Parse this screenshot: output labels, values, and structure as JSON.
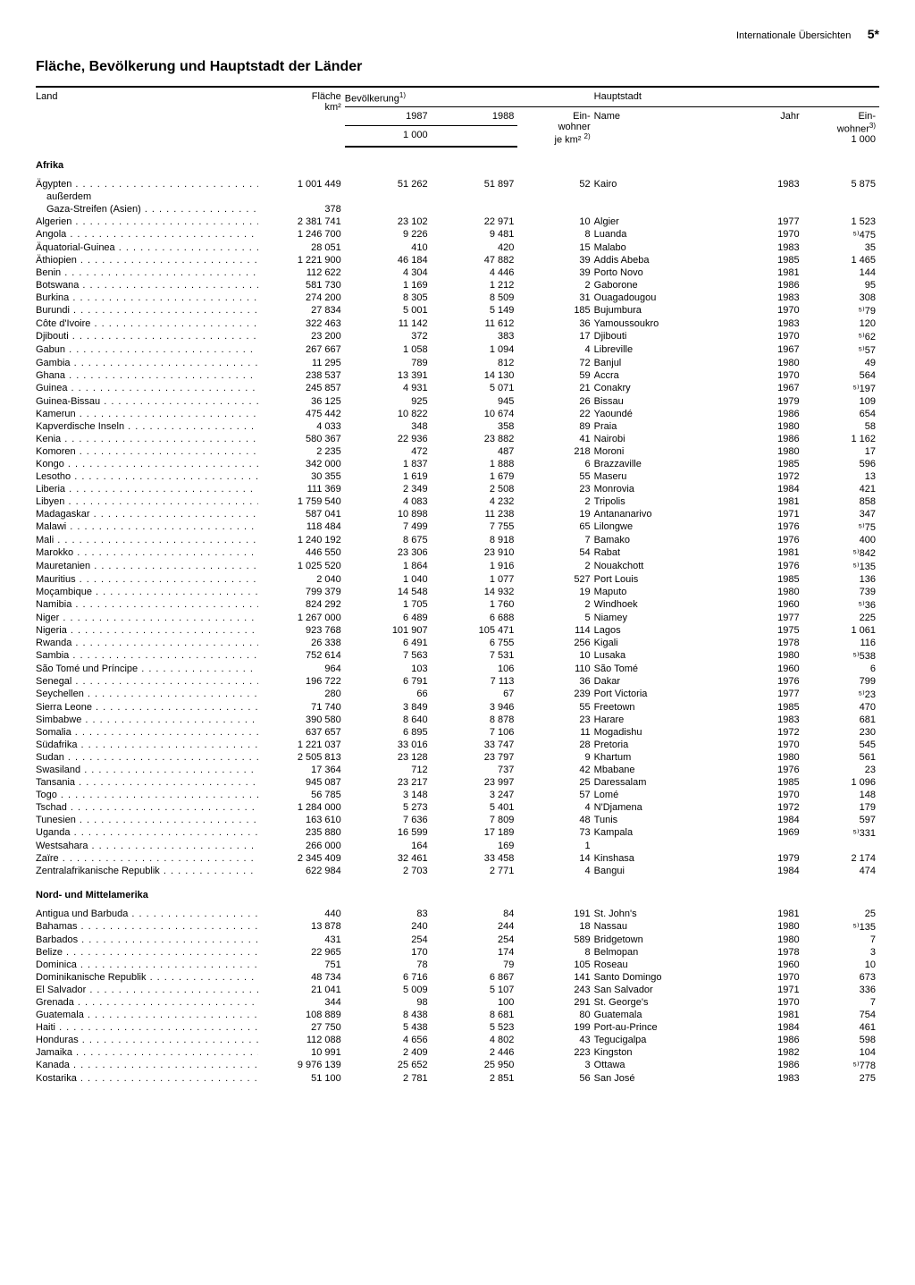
{
  "header": {
    "section": "Internationale Übersichten",
    "page": "5*"
  },
  "title": "Fläche, Bevölkerung und Hauptstadt der Länder",
  "columns": {
    "land": "Land",
    "flaeche": "Fläche",
    "flaeche_unit": "km²",
    "bevoelkerung": "Bevölkerung",
    "bev_note": "1)",
    "y1987": "1987",
    "y1988": "1988",
    "thousand": "1 000",
    "einwohner": "Ein-",
    "einwohner2": "wohner",
    "einwohner_unit": "je km²",
    "einwohner_note": "2)",
    "hauptstadt": "Hauptstadt",
    "name": "Name",
    "jahr": "Jahr",
    "cap_einw": "Ein-",
    "cap_einw2": "wohner",
    "cap_einw_note": "3)",
    "cap_thousand": "1 000"
  },
  "regions": [
    {
      "name": "Afrika",
      "rows": [
        {
          "country": "Ägypten",
          "area": "1 001 449",
          "p87": "51 262",
          "p88": "51 897",
          "dens": "52",
          "cap": "Kairo",
          "year": "1983",
          "capinh": "5 875"
        },
        {
          "country": "außerdem",
          "indent": true,
          "no_dots": true
        },
        {
          "country": "Gaza-Streifen (Asien)",
          "indent": true,
          "area": "378"
        },
        {
          "country": "Algerien",
          "area": "2 381 741",
          "p87": "23 102",
          "p88": "22 971",
          "dens": "10",
          "cap": "Algier",
          "year": "1977",
          "capinh": "1 523"
        },
        {
          "country": "Angola",
          "area": "1 246 700",
          "p87": "9 226",
          "p88": "9 481",
          "dens": "8",
          "cap": "Luanda",
          "year": "1970",
          "capinh": "⁵⁾475"
        },
        {
          "country": "Äquatorial-Guinea",
          "area": "28 051",
          "p87": "410",
          "p88": "420",
          "dens": "15",
          "cap": "Malabo",
          "year": "1983",
          "capinh": "35"
        },
        {
          "country": "Äthiopien",
          "area": "1 221 900",
          "p87": "46 184",
          "p88": "47 882",
          "dens": "39",
          "cap": "Addis Abeba",
          "year": "1985",
          "capinh": "1 465"
        },
        {
          "country": "Benin",
          "area": "112 622",
          "p87": "4 304",
          "p88": "4 446",
          "dens": "39",
          "cap": "Porto Novo",
          "year": "1981",
          "capinh": "144"
        },
        {
          "country": "Botswana",
          "area": "581 730",
          "p87": "1 169",
          "p88": "1 212",
          "dens": "2",
          "cap": "Gaborone",
          "year": "1986",
          "capinh": "95"
        },
        {
          "country": "Burkina",
          "area": "274 200",
          "p87": "8 305",
          "p88": "8 509",
          "dens": "31",
          "cap": "Ouagadougou",
          "year": "1983",
          "capinh": "308"
        },
        {
          "country": "Burundi",
          "area": "27 834",
          "p87": "5 001",
          "p88": "5 149",
          "dens": "185",
          "cap": "Bujumbura",
          "year": "1970",
          "capinh": "⁵⁾79"
        },
        {
          "country": "Côte d'Ivoire",
          "area": "322 463",
          "p87": "11 142",
          "p88": "11 612",
          "dens": "36",
          "cap": "Yamoussoukro",
          "year": "1983",
          "capinh": "120"
        },
        {
          "country": "Djibouti",
          "area": "23 200",
          "p87": "372",
          "p88": "383",
          "dens": "17",
          "cap": "Djibouti",
          "year": "1970",
          "capinh": "⁵⁾62"
        },
        {
          "country": "Gabun",
          "area": "267 667",
          "p87": "1 058",
          "p88": "1 094",
          "dens": "4",
          "cap": "Libreville",
          "year": "1967",
          "capinh": "⁵⁾57"
        },
        {
          "country": "Gambia",
          "area": "11 295",
          "p87": "789",
          "p88": "812",
          "dens": "72",
          "cap": "Banjul",
          "year": "1980",
          "capinh": "49"
        },
        {
          "country": "Ghana",
          "area": "238 537",
          "p87": "13 391",
          "p88": "14 130",
          "dens": "59",
          "cap": "Accra",
          "year": "1970",
          "capinh": "564"
        },
        {
          "country": "Guinea",
          "area": "245 857",
          "p87": "4 931",
          "p88": "5 071",
          "dens": "21",
          "cap": "Conakry",
          "year": "1967",
          "capinh": "⁵⁾197"
        },
        {
          "country": "Guinea-Bissau",
          "area": "36 125",
          "p87": "925",
          "p88": "945",
          "dens": "26",
          "cap": "Bissau",
          "year": "1979",
          "capinh": "109"
        },
        {
          "country": "Kamerun",
          "area": "475 442",
          "p87": "10 822",
          "p88": "10 674",
          "dens": "22",
          "cap": "Yaoundé",
          "year": "1986",
          "capinh": "654"
        },
        {
          "country": "Kapverdische Inseln",
          "area": "4 033",
          "p87": "348",
          "p88": "358",
          "dens": "89",
          "cap": "Praia",
          "year": "1980",
          "capinh": "58"
        },
        {
          "country": "Kenia",
          "area": "580 367",
          "p87": "22 936",
          "p88": "23 882",
          "dens": "41",
          "cap": "Nairobi",
          "year": "1986",
          "capinh": "1 162"
        },
        {
          "country": "Komoren",
          "area": "2 235",
          "p87": "472",
          "p88": "487",
          "dens": "218",
          "cap": "Moroni",
          "year": "1980",
          "capinh": "17"
        },
        {
          "country": "Kongo",
          "area": "342 000",
          "p87": "1 837",
          "p88": "1 888",
          "dens": "6",
          "cap": "Brazzaville",
          "year": "1985",
          "capinh": "596"
        },
        {
          "country": "Lesotho",
          "area": "30 355",
          "p87": "1 619",
          "p88": "1 679",
          "dens": "55",
          "cap": "Maseru",
          "year": "1972",
          "capinh": "13"
        },
        {
          "country": "Liberia",
          "area": "111 369",
          "p87": "2 349",
          "p88": "2 508",
          "dens": "23",
          "cap": "Monrovia",
          "year": "1984",
          "capinh": "421"
        },
        {
          "country": "Libyen",
          "area": "1 759 540",
          "p87": "4 083",
          "p88": "4 232",
          "dens": "2",
          "cap": "Tripolis",
          "year": "1981",
          "capinh": "858"
        },
        {
          "country": "Madagaskar",
          "area": "587 041",
          "p87": "10 898",
          "p88": "11 238",
          "dens": "19",
          "cap": "Antananarivo",
          "year": "1971",
          "capinh": "347"
        },
        {
          "country": "Malawi",
          "area": "118 484",
          "p87": "7 499",
          "p88": "7 755",
          "dens": "65",
          "cap": "Lilongwe",
          "year": "1976",
          "capinh": "⁵⁾75"
        },
        {
          "country": "Mali",
          "area": "1 240 192",
          "p87": "8 675",
          "p88": "8 918",
          "dens": "7",
          "cap": "Bamako",
          "year": "1976",
          "capinh": "400"
        },
        {
          "country": "Marokko",
          "area": "446 550",
          "p87": "23 306",
          "p88": "23 910",
          "dens": "54",
          "cap": "Rabat",
          "year": "1981",
          "capinh": "⁵⁾842"
        },
        {
          "country": "Mauretanien",
          "area": "1 025 520",
          "p87": "1 864",
          "p88": "1 916",
          "dens": "2",
          "cap": "Nouakchott",
          "year": "1976",
          "capinh": "⁵⁾135"
        },
        {
          "country": "Mauritius",
          "area": "2 040",
          "p87": "1 040",
          "p88": "1 077",
          "dens": "527",
          "cap": "Port Louis",
          "year": "1985",
          "capinh": "136"
        },
        {
          "country": "Moçambique",
          "area": "799 379",
          "p87": "14 548",
          "p88": "14 932",
          "dens": "19",
          "cap": "Maputo",
          "year": "1980",
          "capinh": "739"
        },
        {
          "country": "Namibia",
          "area": "824 292",
          "p87": "1 705",
          "p88": "1 760",
          "dens": "2",
          "cap": "Windhoek",
          "year": "1960",
          "capinh": "⁵⁾36"
        },
        {
          "country": "Niger",
          "area": "1 267 000",
          "p87": "6 489",
          "p88": "6 688",
          "dens": "5",
          "cap": "Niamey",
          "year": "1977",
          "capinh": "225"
        },
        {
          "country": "Nigeria",
          "area": "923 768",
          "p87": "101 907",
          "p88": "105 471",
          "dens": "114",
          "cap": "Lagos",
          "year": "1975",
          "capinh": "1 061"
        },
        {
          "country": "Rwanda",
          "area": "26 338",
          "p87": "6 491",
          "p88": "6 755",
          "dens": "256",
          "cap": "Kigali",
          "year": "1978",
          "capinh": "116"
        },
        {
          "country": "Sambia",
          "area": "752 614",
          "p87": "7 563",
          "p88": "7 531",
          "dens": "10",
          "cap": "Lusaka",
          "year": "1980",
          "capinh": "⁵⁾538"
        },
        {
          "country": "São Tomé und Príncipe",
          "area": "964",
          "p87": "103",
          "p88": "106",
          "dens": "110",
          "cap": "São Tomé",
          "year": "1960",
          "capinh": "6"
        },
        {
          "country": "Senegal",
          "area": "196 722",
          "p87": "6 791",
          "p88": "7 113",
          "dens": "36",
          "cap": "Dakar",
          "year": "1976",
          "capinh": "799"
        },
        {
          "country": "Seychellen",
          "area": "280",
          "p87": "66",
          "p88": "67",
          "dens": "239",
          "cap": "Port Victoria",
          "year": "1977",
          "capinh": "⁵⁾23"
        },
        {
          "country": "Sierra Leone",
          "area": "71 740",
          "p87": "3 849",
          "p88": "3 946",
          "dens": "55",
          "cap": "Freetown",
          "year": "1985",
          "capinh": "470"
        },
        {
          "country": "Simbabwe",
          "area": "390 580",
          "p87": "8 640",
          "p88": "8 878",
          "dens": "23",
          "cap": "Harare",
          "year": "1983",
          "capinh": "681"
        },
        {
          "country": "Somalia",
          "area": "637 657",
          "p87": "6 895",
          "p88": "7 106",
          "dens": "11",
          "cap": "Mogadishu",
          "year": "1972",
          "capinh": "230"
        },
        {
          "country": "Südafrika",
          "area": "1 221 037",
          "p87": "33 016",
          "p88": "33 747",
          "dens": "28",
          "cap": "Pretoria",
          "year": "1970",
          "capinh": "545"
        },
        {
          "country": "Sudan",
          "area": "2 505 813",
          "p87": "23 128",
          "p88": "23 797",
          "dens": "9",
          "cap": "Khartum",
          "year": "1980",
          "capinh": "561"
        },
        {
          "country": "Swasiland",
          "area": "17 364",
          "p87": "712",
          "p88": "737",
          "dens": "42",
          "cap": "Mbabane",
          "year": "1976",
          "capinh": "23"
        },
        {
          "country": "Tansania",
          "area": "945 087",
          "p87": "23 217",
          "p88": "23 997",
          "dens": "25",
          "cap": "Daressalam",
          "year": "1985",
          "capinh": "1 096"
        },
        {
          "country": "Togo",
          "area": "56 785",
          "p87": "3 148",
          "p88": "3 247",
          "dens": "57",
          "cap": "Lomé",
          "year": "1970",
          "capinh": "148"
        },
        {
          "country": "Tschad",
          "area": "1 284 000",
          "p87": "5 273",
          "p88": "5 401",
          "dens": "4",
          "cap": "N'Djamena",
          "year": "1972",
          "capinh": "179"
        },
        {
          "country": "Tunesien",
          "area": "163 610",
          "p87": "7 636",
          "p88": "7 809",
          "dens": "48",
          "cap": "Tunis",
          "year": "1984",
          "capinh": "597"
        },
        {
          "country": "Uganda",
          "area": "235 880",
          "p87": "16 599",
          "p88": "17 189",
          "dens": "73",
          "cap": "Kampala",
          "year": "1969",
          "capinh": "⁵⁾331"
        },
        {
          "country": "Westsahara",
          "area": "266 000",
          "p87": "164",
          "p88": "169",
          "dens": "1"
        },
        {
          "country": "Zaïre",
          "area": "2 345 409",
          "p87": "32 461",
          "p88": "33 458",
          "dens": "14",
          "cap": "Kinshasa",
          "year": "1979",
          "capinh": "2 174"
        },
        {
          "country": "Zentralafrikanische Republik",
          "area": "622 984",
          "p87": "2 703",
          "p88": "2 771",
          "dens": "4",
          "cap": "Bangui",
          "year": "1984",
          "capinh": "474"
        }
      ]
    },
    {
      "name": "Nord- und Mittelamerika",
      "rows": [
        {
          "country": "Antigua und Barbuda",
          "area": "440",
          "p87": "83",
          "p88": "84",
          "dens": "191",
          "cap": "St. John's",
          "year": "1981",
          "capinh": "25"
        },
        {
          "country": "Bahamas",
          "area": "13 878",
          "p87": "240",
          "p88": "244",
          "dens": "18",
          "cap": "Nassau",
          "year": "1980",
          "capinh": "⁵⁾135"
        },
        {
          "country": "Barbados",
          "area": "431",
          "p87": "254",
          "p88": "254",
          "dens": "589",
          "cap": "Bridgetown",
          "year": "1980",
          "capinh": "7"
        },
        {
          "country": "Belize",
          "area": "22 965",
          "p87": "170",
          "p88": "174",
          "dens": "8",
          "cap": "Belmopan",
          "year": "1978",
          "capinh": "3"
        },
        {
          "country": "Dominica",
          "area": "751",
          "p87": "78",
          "p88": "79",
          "dens": "105",
          "cap": "Roseau",
          "year": "1960",
          "capinh": "10"
        },
        {
          "country": "Dominikanische Republik",
          "area": "48 734",
          "p87": "6 716",
          "p88": "6 867",
          "dens": "141",
          "cap": "Santo Domingo",
          "year": "1970",
          "capinh": "673"
        },
        {
          "country": "El Salvador",
          "area": "21 041",
          "p87": "5 009",
          "p88": "5 107",
          "dens": "243",
          "cap": "San Salvador",
          "year": "1971",
          "capinh": "336"
        },
        {
          "country": "Grenada",
          "area": "344",
          "p87": "98",
          "p88": "100",
          "dens": "291",
          "cap": "St. George's",
          "year": "1970",
          "capinh": "7"
        },
        {
          "country": "Guatemala",
          "area": "108 889",
          "p87": "8 438",
          "p88": "8 681",
          "dens": "80",
          "cap": "Guatemala",
          "year": "1981",
          "capinh": "754"
        },
        {
          "country": "Haiti",
          "area": "27 750",
          "p87": "5 438",
          "p88": "5 523",
          "dens": "199",
          "cap": "Port-au-Prince",
          "year": "1984",
          "capinh": "461"
        },
        {
          "country": "Honduras",
          "area": "112 088",
          "p87": "4 656",
          "p88": "4 802",
          "dens": "43",
          "cap": "Tegucigalpa",
          "year": "1986",
          "capinh": "598"
        },
        {
          "country": "Jamaika",
          "area": "10 991",
          "p87": "2 409",
          "p88": "2 446",
          "dens": "223",
          "cap": "Kingston",
          "year": "1982",
          "capinh": "104"
        },
        {
          "country": "Kanada",
          "area": "9 976 139",
          "p87": "25 652",
          "p88": "25 950",
          "dens": "3",
          "cap": "Ottawa",
          "year": "1986",
          "capinh": "⁵⁾778"
        },
        {
          "country": "Kostarika",
          "area": "51 100",
          "p87": "2 781",
          "p88": "2 851",
          "dens": "56",
          "cap": "San José",
          "year": "1983",
          "capinh": "275"
        }
      ]
    }
  ]
}
